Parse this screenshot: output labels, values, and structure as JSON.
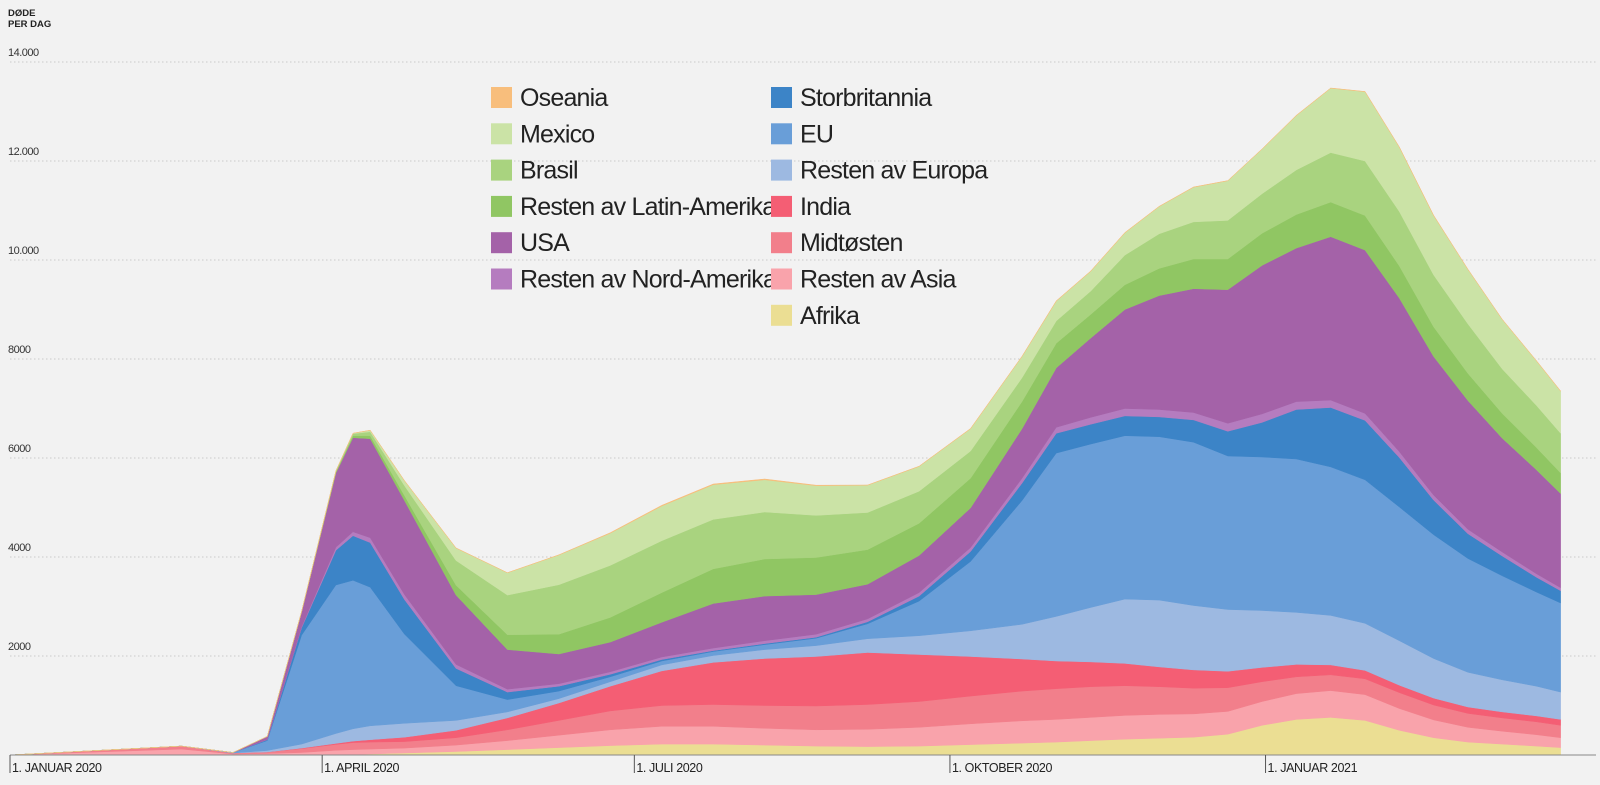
{
  "chart_data": {
    "type": "area",
    "stacked": true,
    "ylabel_line1": "DØDE",
    "ylabel_line2": "PER DAG",
    "ylim": [
      0,
      14000
    ],
    "yticks": [
      {
        "value": 2000,
        "label": "2000"
      },
      {
        "value": 4000,
        "label": "4000"
      },
      {
        "value": 6000,
        "label": "6000"
      },
      {
        "value": 8000,
        "label": "8000"
      },
      {
        "value": 10000,
        "label": "10.000"
      },
      {
        "value": 12000,
        "label": "12.000"
      },
      {
        "value": 14000,
        "label": "14.000"
      }
    ],
    "xlim": [
      0,
      460
    ],
    "x_unit": "days since 1 January 2020",
    "xticks": [
      {
        "value": 0,
        "label": "1. JANUAR 2020"
      },
      {
        "value": 91,
        "label": "1. APRIL 2020"
      },
      {
        "value": 182,
        "label": "1. JULI 2020"
      },
      {
        "value": 274,
        "label": "1. OKTOBER 2020"
      },
      {
        "value": 366,
        "label": "1. JANUAR 2021"
      }
    ],
    "x": [
      0,
      50,
      65,
      75,
      85,
      95,
      100,
      105,
      115,
      130,
      145,
      160,
      175,
      190,
      205,
      220,
      235,
      250,
      265,
      280,
      295,
      305,
      315,
      325,
      335,
      345,
      355,
      365,
      375,
      385,
      395,
      405,
      415,
      425,
      435,
      445,
      452
    ],
    "series": [
      {
        "name": "Afrika",
        "color": "#ebde93",
        "values": [
          0,
          0,
          0,
          0,
          0,
          5,
          10,
          20,
          40,
          70,
          110,
          150,
          190,
          220,
          220,
          200,
          180,
          170,
          180,
          210,
          240,
          260,
          290,
          320,
          340,
          360,
          420,
          600,
          720,
          760,
          700,
          500,
          350,
          260,
          220,
          180,
          150
        ]
      },
      {
        "name": "Resten av Asia",
        "color": "#f9a3ab",
        "values": [
          0,
          120,
          20,
          30,
          50,
          90,
          100,
          100,
          100,
          130,
          180,
          250,
          320,
          360,
          360,
          340,
          330,
          350,
          380,
          420,
          450,
          460,
          470,
          480,
          480,
          470,
          460,
          480,
          520,
          540,
          520,
          440,
          360,
          300,
          260,
          230,
          200
        ]
      },
      {
        "name": "Midtøsten",
        "color": "#f27f8b",
        "values": [
          0,
          60,
          20,
          30,
          80,
          120,
          140,
          140,
          130,
          150,
          220,
          300,
          380,
          420,
          440,
          460,
          480,
          500,
          520,
          560,
          600,
          620,
          620,
          600,
          560,
          520,
          480,
          400,
          340,
          320,
          320,
          320,
          300,
          280,
          270,
          260,
          250
        ]
      },
      {
        "name": "India",
        "color": "#f45e74",
        "values": [
          0,
          0,
          0,
          0,
          10,
          20,
          30,
          50,
          90,
          150,
          240,
          350,
          500,
          700,
          850,
          950,
          1000,
          1050,
          950,
          800,
          650,
          560,
          500,
          450,
          400,
          370,
          330,
          290,
          250,
          200,
          170,
          150,
          140,
          130,
          120,
          120,
          120
        ]
      },
      {
        "name": "Resten av Europa",
        "color": "#9db9e1",
        "values": [
          0,
          0,
          0,
          30,
          80,
          200,
          250,
          280,
          280,
          200,
          120,
          90,
          90,
          120,
          140,
          180,
          220,
          280,
          380,
          520,
          700,
          900,
          1100,
          1300,
          1350,
          1300,
          1250,
          1150,
          1050,
          1000,
          950,
          900,
          800,
          700,
          650,
          600,
          550
        ]
      },
      {
        "name": "EU",
        "color": "#699ed8",
        "values": [
          0,
          0,
          10,
          200,
          2200,
          3000,
          3000,
          2800,
          1800,
          700,
          250,
          150,
          100,
          80,
          80,
          100,
          150,
          300,
          700,
          1400,
          2500,
          3300,
          3300,
          3300,
          3300,
          3300,
          3100,
          3100,
          3100,
          3000,
          2900,
          2700,
          2500,
          2300,
          2100,
          1900,
          1800
        ]
      },
      {
        "name": "Storbritannia",
        "color": "#3c84c7",
        "values": [
          0,
          0,
          0,
          20,
          150,
          700,
          900,
          900,
          700,
          350,
          150,
          100,
          50,
          30,
          20,
          20,
          20,
          40,
          100,
          200,
          350,
          400,
          400,
          400,
          400,
          450,
          500,
          700,
          1000,
          1200,
          1200,
          1000,
          700,
          500,
          400,
          300,
          250
        ]
      },
      {
        "name": "Resten av Nord-Amerika",
        "color": "#b57cbf",
        "values": [
          0,
          0,
          0,
          5,
          20,
          60,
          80,
          100,
          100,
          80,
          60,
          50,
          50,
          50,
          50,
          60,
          60,
          60,
          70,
          80,
          100,
          120,
          140,
          150,
          150,
          150,
          160,
          170,
          160,
          150,
          140,
          120,
          100,
          90,
          80,
          70,
          60
        ]
      },
      {
        "name": "USA",
        "color": "#a462a8",
        "values": [
          0,
          0,
          0,
          60,
          300,
          1500,
          1900,
          2000,
          1900,
          1400,
          800,
          600,
          600,
          700,
          900,
          900,
          800,
          700,
          750,
          800,
          1000,
          1200,
          1600,
          2000,
          2300,
          2500,
          2700,
          3000,
          3100,
          3300,
          3300,
          3100,
          2800,
          2600,
          2300,
          2100,
          1900
        ]
      },
      {
        "name": "Resten av Latin-Amerika",
        "color": "#90c663",
        "values": [
          0,
          0,
          0,
          0,
          5,
          20,
          40,
          60,
          100,
          200,
          300,
          400,
          500,
          600,
          700,
          750,
          750,
          700,
          650,
          600,
          550,
          500,
          480,
          500,
          550,
          600,
          620,
          650,
          680,
          700,
          700,
          650,
          600,
          550,
          500,
          450,
          420
        ]
      },
      {
        "name": "Brasil",
        "color": "#a9d37f",
        "values": [
          0,
          0,
          0,
          0,
          5,
          20,
          40,
          80,
          200,
          500,
          800,
          1000,
          1050,
          1050,
          1000,
          950,
          850,
          750,
          650,
          550,
          480,
          450,
          470,
          600,
          700,
          750,
          780,
          800,
          900,
          1000,
          1100,
          1100,
          1050,
          1000,
          900,
          850,
          800
        ]
      },
      {
        "name": "Mexico",
        "color": "#cbe3a6",
        "values": [
          0,
          0,
          0,
          0,
          0,
          5,
          10,
          30,
          100,
          250,
          450,
          600,
          650,
          700,
          700,
          650,
          600,
          550,
          500,
          450,
          430,
          400,
          400,
          450,
          550,
          700,
          800,
          900,
          1100,
          1300,
          1400,
          1300,
          1200,
          1100,
          1000,
          900,
          850
        ]
      },
      {
        "name": "Oseania",
        "color": "#f8be7c",
        "values": [
          0,
          0,
          0,
          0,
          0,
          1,
          1,
          2,
          3,
          3,
          3,
          5,
          10,
          15,
          15,
          15,
          10,
          5,
          5,
          5,
          5,
          5,
          5,
          5,
          5,
          5,
          5,
          5,
          5,
          5,
          5,
          5,
          5,
          5,
          5,
          5,
          5
        ]
      }
    ]
  },
  "legend": {
    "col1": [
      {
        "label": "Oseania",
        "color": "#f8be7c"
      },
      {
        "label": "Mexico",
        "color": "#cbe3a6"
      },
      {
        "label": "Brasil",
        "color": "#a9d37f"
      },
      {
        "label": "Resten av Latin-Amerika",
        "color": "#90c663"
      },
      {
        "label": "USA",
        "color": "#a462a8"
      },
      {
        "label": "Resten av Nord-Amerika",
        "color": "#b57cbf"
      }
    ],
    "col2": [
      {
        "label": "Storbritannia",
        "color": "#3c84c7"
      },
      {
        "label": "EU",
        "color": "#699ed8"
      },
      {
        "label": "Resten av Europa",
        "color": "#9db9e1"
      },
      {
        "label": "India",
        "color": "#f45e74"
      },
      {
        "label": "Midtøsten",
        "color": "#f27f8b"
      },
      {
        "label": "Resten av Asia",
        "color": "#f9a3ab"
      },
      {
        "label": "Afrika",
        "color": "#ebde93"
      }
    ]
  }
}
